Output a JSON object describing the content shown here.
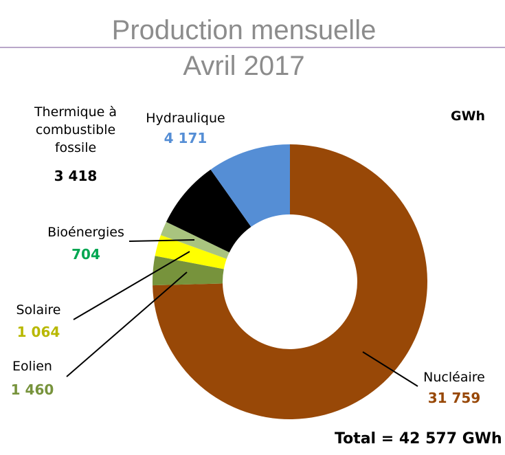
{
  "title_line1": "Production mensuelle",
  "title_line2": "Avril 2017",
  "unit": "GWh",
  "total": "Total = 42 577 GWh",
  "chart_data": {
    "type": "pie",
    "title": "Production mensuelle Avril 2017",
    "unit": "GWh",
    "series": [
      {
        "name": "Nucléaire",
        "value": 31759,
        "label": "31 759",
        "color": "#984807"
      },
      {
        "name": "Eolien",
        "value": 1460,
        "label": "1 460",
        "color": "#77933c"
      },
      {
        "name": "Solaire",
        "value": 1064,
        "label": "1 064",
        "color": "#ffff00"
      },
      {
        "name": "Bioénergies",
        "value": 704,
        "label": "704",
        "color": "#a9c47f"
      },
      {
        "name": "Thermique à combustible fossile",
        "value": 3418,
        "label": "3 418",
        "color": "#000000"
      },
      {
        "name": "Hydraulique",
        "value": 4171,
        "label": "4 171",
        "color": "#558ed5"
      }
    ],
    "value_colors": {
      "Nucléaire": "#984807",
      "Eolien": "#77933c",
      "Solaire": "#b8b800",
      "Bioénergies": "#00a651",
      "Thermique à combustible fossile": "#000000",
      "Hydraulique": "#558ed5"
    }
  },
  "labels": {
    "thermique": [
      "Thermique à",
      "combustible",
      "fossile"
    ],
    "hydraulique": "Hydraulique",
    "bioenergies": "Bioénergies",
    "solaire": "Solaire",
    "eolien": "Eolien",
    "nucleaire": "Nucléaire"
  }
}
